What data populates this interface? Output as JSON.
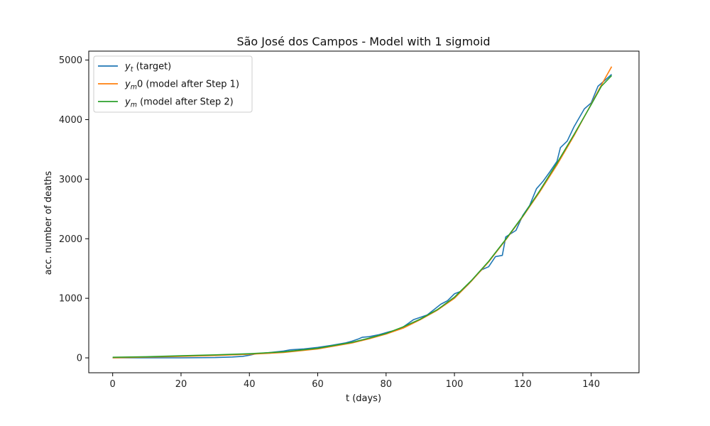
{
  "chart_data": {
    "type": "line",
    "title": "São José dos Campos - Model with 1 sigmoid",
    "xlabel": "t (days)",
    "ylabel": "acc. number of deaths",
    "xlim": [
      -7,
      154
    ],
    "ylim": [
      -250,
      5150
    ],
    "xticks": [
      0,
      20,
      40,
      60,
      80,
      100,
      120,
      140
    ],
    "yticks": [
      0,
      1000,
      2000,
      3000,
      4000,
      5000
    ],
    "grid": false,
    "legend_position": "top-left",
    "series": [
      {
        "name": "y_t (target)",
        "legend_main": "y",
        "legend_sub": "t",
        "legend_rest": " (target)",
        "color": "#1f77b4",
        "x": [
          0,
          10,
          20,
          30,
          35,
          38,
          40,
          42,
          46,
          50,
          52,
          56,
          60,
          64,
          68,
          70,
          72,
          73,
          75,
          78,
          81,
          84,
          86,
          88,
          90,
          92,
          94,
          96,
          98,
          100,
          102,
          104,
          106,
          108,
          110,
          112,
          114,
          115,
          118,
          120,
          122,
          124,
          126,
          128,
          130,
          131,
          133,
          135,
          138,
          140,
          142,
          144,
          146
        ],
        "y": [
          0,
          0,
          0,
          5,
          15,
          25,
          45,
          70,
          90,
          115,
          135,
          150,
          175,
          210,
          250,
          280,
          320,
          345,
          355,
          390,
          440,
          480,
          560,
          640,
          680,
          720,
          810,
          900,
          960,
          1075,
          1120,
          1230,
          1360,
          1480,
          1530,
          1700,
          1720,
          2030,
          2140,
          2390,
          2560,
          2840,
          2970,
          3130,
          3300,
          3530,
          3640,
          3880,
          4180,
          4280,
          4560,
          4660,
          4760
        ]
      },
      {
        "name": "y_m0 (model after Step 1)",
        "legend_main": "y",
        "legend_sub": "m",
        "legend_rest": "0 (model after Step 1)",
        "color": "#ff7f0e",
        "x": [
          0,
          10,
          20,
          30,
          40,
          50,
          60,
          70,
          75,
          80,
          85,
          90,
          95,
          100,
          105,
          110,
          115,
          120,
          125,
          130,
          135,
          140,
          143,
          146
        ],
        "y": [
          0,
          12,
          25,
          40,
          60,
          90,
          150,
          250,
          320,
          400,
          500,
          640,
          800,
          1000,
          1290,
          1610,
          1980,
          2370,
          2790,
          3240,
          3730,
          4260,
          4580,
          4890
        ]
      },
      {
        "name": "y_m (model after Step 2)",
        "legend_main": "y",
        "legend_sub": "m",
        "legend_rest": " (model after Step 2)",
        "color": "#2ca02c",
        "x": [
          0,
          10,
          20,
          30,
          40,
          50,
          60,
          70,
          75,
          80,
          85,
          90,
          95,
          100,
          105,
          110,
          115,
          120,
          125,
          130,
          135,
          140,
          143,
          146
        ],
        "y": [
          10,
          20,
          35,
          50,
          70,
          100,
          160,
          260,
          330,
          410,
          520,
          650,
          810,
          1020,
          1300,
          1620,
          1990,
          2380,
          2810,
          3270,
          3750,
          4250,
          4560,
          4740
        ]
      }
    ]
  }
}
